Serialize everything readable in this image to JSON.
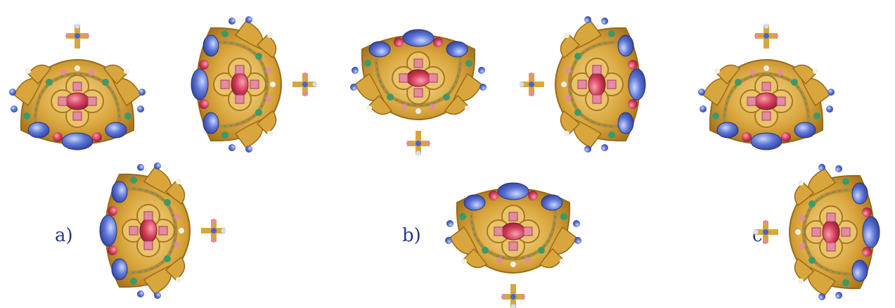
{
  "labels": {
    "a": "a)",
    "b": "b)",
    "c": "c)"
  },
  "colors": {
    "label": "#2a3a8a",
    "gold": "#d7a43a",
    "gold_dark": "#a9761f",
    "gold_light": "#f0d27a",
    "ruby": "#d23c5a",
    "pink": "#e58aa0",
    "sapphire": "#4a64c8",
    "sapphire_light": "#9fb3f0",
    "emerald": "#3a9a6a",
    "pearl": "#f4efe6"
  },
  "crowns": [
    {
      "name": "top-1",
      "orientation": "upright"
    },
    {
      "name": "top-2",
      "orientation": "rotated-right"
    },
    {
      "name": "top-3",
      "orientation": "upside-down"
    },
    {
      "name": "top-4",
      "orientation": "rotated-left"
    },
    {
      "name": "top-5",
      "orientation": "upright"
    },
    {
      "name": "option-a",
      "orientation": "rotated-right"
    },
    {
      "name": "option-b",
      "orientation": "upside-down"
    },
    {
      "name": "option-c",
      "orientation": "rotated-left"
    }
  ]
}
